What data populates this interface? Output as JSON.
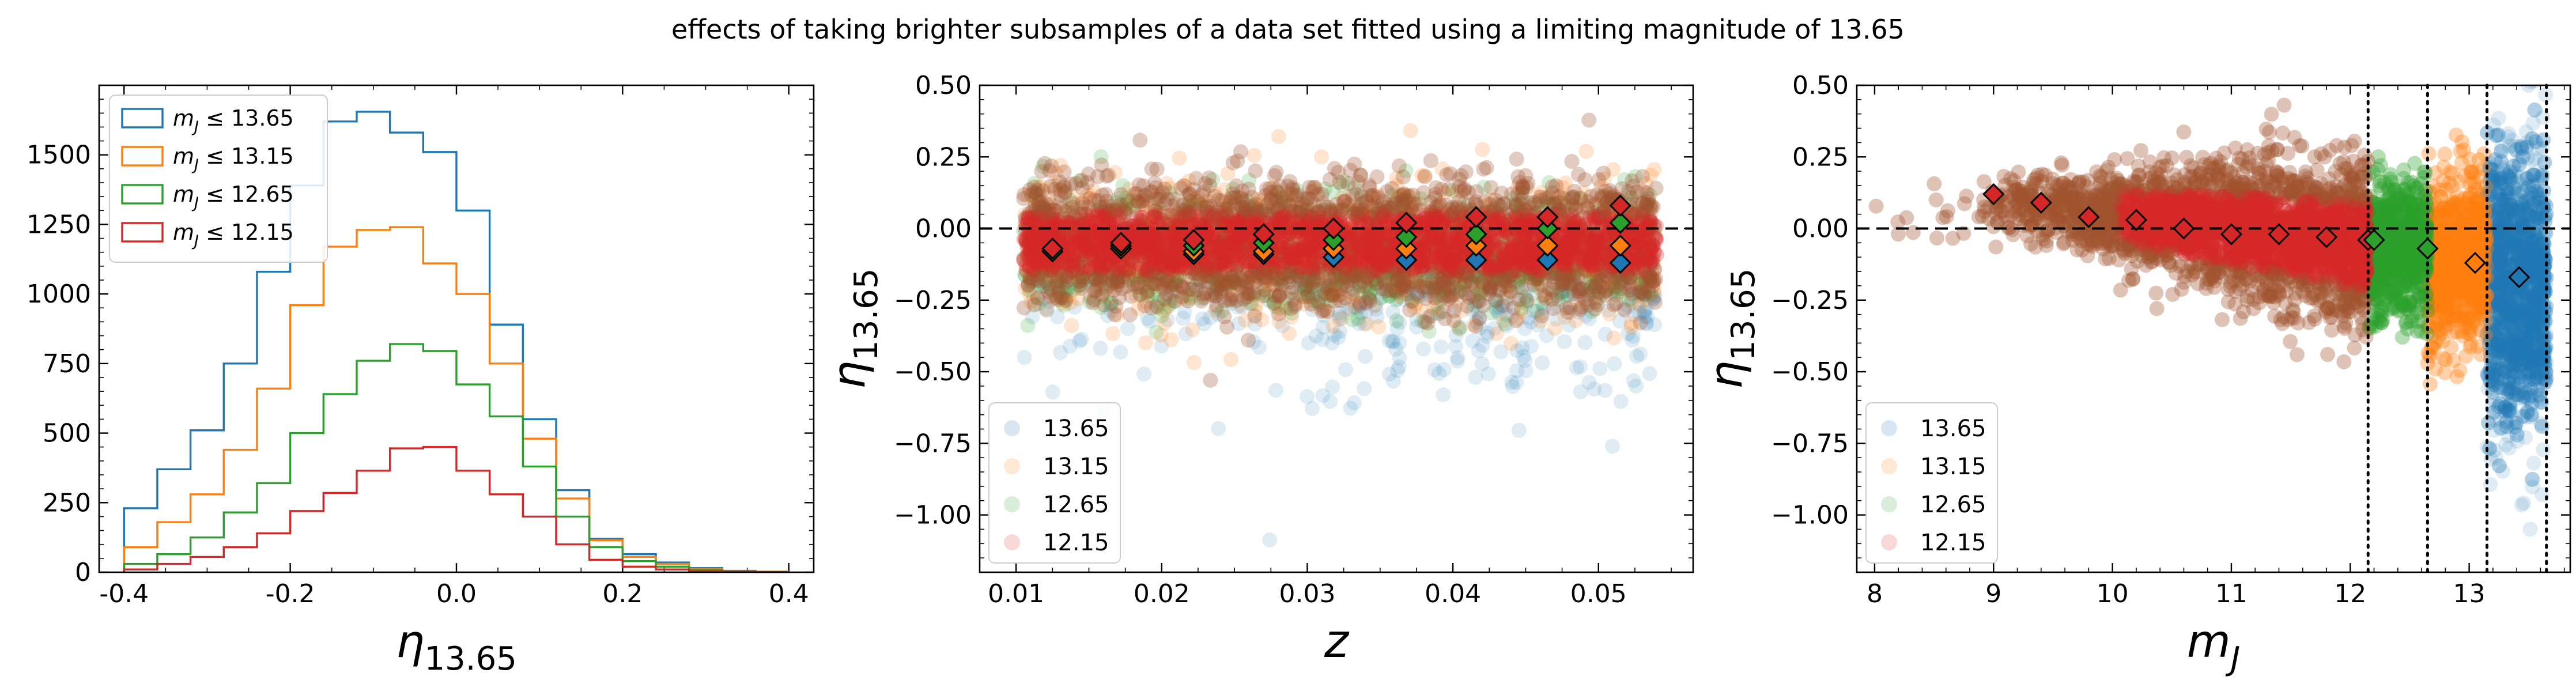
{
  "title": "effects of taking brighter subsamples of a data set fitted using a limiting magnitude of 13.65",
  "colors": {
    "s1365": "#1f77b4",
    "s1315": "#ff7f0e",
    "s1265": "#2ca02c",
    "s1215": "#d62728",
    "brown": "#a0522d"
  },
  "chart_data": [
    {
      "type": "histogram",
      "xlabel": "η13.65",
      "xlabel_main": "η",
      "xlabel_sub": "13.65",
      "ylabel": "",
      "xlim": [
        -0.43,
        0.43
      ],
      "ylim": [
        0,
        1750
      ],
      "xticks": [
        "-0.4",
        "-0.2",
        "0.0",
        "0.2",
        "0.4"
      ],
      "xtick_values": [
        -0.4,
        -0.2,
        0.0,
        0.2,
        0.4
      ],
      "yticks": [
        "0",
        "250",
        "500",
        "750",
        "1000",
        "1250",
        "1500"
      ],
      "ytick_values": [
        0,
        250,
        500,
        750,
        1000,
        1250,
        1500
      ],
      "legend_position": "top-left",
      "bin_edges": [
        -0.4,
        -0.36,
        -0.32,
        -0.28,
        -0.24,
        -0.2,
        -0.16,
        -0.12,
        -0.08,
        -0.04,
        0.0,
        0.04,
        0.08,
        0.12,
        0.16,
        0.2,
        0.24,
        0.28,
        0.32,
        0.36,
        0.4
      ],
      "series": [
        {
          "name": "m_J ≤ 13.65",
          "name_main": "m",
          "name_sub": "J",
          "name_rest": " ≤ 13.65",
          "color_key": "s1365",
          "values": [
            230,
            370,
            510,
            750,
            1080,
            1390,
            1620,
            1655,
            1580,
            1510,
            1300,
            890,
            550,
            295,
            120,
            65,
            35,
            15,
            5,
            2
          ]
        },
        {
          "name": "m_J ≤ 13.15",
          "name_main": "m",
          "name_sub": "J",
          "name_rest": " ≤ 13.15",
          "color_key": "s1315",
          "values": [
            90,
            180,
            280,
            440,
            660,
            960,
            1170,
            1230,
            1240,
            1110,
            1000,
            750,
            480,
            265,
            115,
            55,
            30,
            12,
            4,
            2
          ]
        },
        {
          "name": "m_J ≤ 12.65",
          "name_main": "m",
          "name_sub": "J",
          "name_rest": " ≤ 12.65",
          "color_key": "s1265",
          "values": [
            30,
            65,
            125,
            215,
            320,
            500,
            640,
            760,
            820,
            795,
            675,
            560,
            380,
            200,
            90,
            40,
            20,
            8,
            3,
            1
          ]
        },
        {
          "name": "m_J ≤ 12.15",
          "name_main": "m",
          "name_sub": "J",
          "name_rest": " ≤ 12.15",
          "color_key": "s1215",
          "values": [
            10,
            30,
            55,
            90,
            140,
            220,
            285,
            365,
            445,
            450,
            365,
            280,
            200,
            100,
            45,
            20,
            10,
            4,
            2,
            1
          ]
        }
      ]
    },
    {
      "type": "scatter",
      "xlabel": "z",
      "ylabel": "η13.65",
      "ylabel_main": "η",
      "ylabel_sub": "13.65",
      "xlim": [
        0.0075,
        0.0565
      ],
      "ylim": [
        -1.2,
        0.5
      ],
      "xticks": [
        "0.01",
        "0.02",
        "0.03",
        "0.04",
        "0.05"
      ],
      "xtick_values": [
        0.01,
        0.02,
        0.03,
        0.04,
        0.05
      ],
      "yticks": [
        "−1.00",
        "−0.75",
        "−0.50",
        "−0.25",
        "0.00",
        "0.25",
        "0.50"
      ],
      "ytick_values": [
        -1.0,
        -0.75,
        -0.5,
        -0.25,
        0.0,
        0.25,
        0.5
      ],
      "reference_line_y": 0.0,
      "legend_position": "bottom-left",
      "legend": [
        "13.65",
        "13.15",
        "12.65",
        "12.15"
      ],
      "point_clouds": [
        {
          "name": "13.65",
          "color_key": "s1365",
          "x_range": [
            0.0105,
            0.054
          ],
          "y_mean": -0.13,
          "y_sd": 0.17,
          "tail_x_from": 0.03
        },
        {
          "name": "13.15",
          "color_key": "s1315",
          "x_range": [
            0.0105,
            0.054
          ],
          "y_mean": -0.09,
          "y_sd": 0.11
        },
        {
          "name": "12.65",
          "color_key": "s1265",
          "x_range": [
            0.0105,
            0.054
          ],
          "y_mean": -0.06,
          "y_sd": 0.1
        },
        {
          "name": "12.15",
          "color_key": "s1215",
          "x_range": [
            0.0105,
            0.054
          ],
          "y_mean": -0.05,
          "y_sd": 0.09
        }
      ],
      "binned_means": [
        {
          "name": "13.65",
          "color_key": "s1365",
          "x": [
            0.0125,
            0.0172,
            0.0222,
            0.027,
            0.0318,
            0.0368,
            0.0416,
            0.0465,
            0.0515
          ],
          "y": [
            -0.08,
            -0.07,
            -0.09,
            -0.09,
            -0.1,
            -0.11,
            -0.11,
            -0.11,
            -0.12
          ]
        },
        {
          "name": "13.15",
          "color_key": "s1315",
          "x": [
            0.0125,
            0.0172,
            0.0222,
            0.027,
            0.0318,
            0.0368,
            0.0416,
            0.0465,
            0.0515
          ],
          "y": [
            -0.08,
            -0.07,
            -0.08,
            -0.08,
            -0.07,
            -0.07,
            -0.06,
            -0.06,
            -0.06
          ]
        },
        {
          "name": "12.65",
          "color_key": "s1265",
          "x": [
            0.0125,
            0.0172,
            0.0222,
            0.027,
            0.0318,
            0.0368,
            0.0416,
            0.0465,
            0.0515
          ],
          "y": [
            -0.08,
            -0.06,
            -0.06,
            -0.05,
            -0.04,
            -0.03,
            -0.02,
            0.0,
            0.02
          ]
        },
        {
          "name": "12.15",
          "color_key": "s1215",
          "x": [
            0.0125,
            0.0172,
            0.0222,
            0.027,
            0.0318,
            0.0368,
            0.0416,
            0.0465,
            0.0515
          ],
          "y": [
            -0.07,
            -0.05,
            -0.04,
            -0.02,
            0.0,
            0.02,
            0.04,
            0.04,
            0.08
          ]
        }
      ]
    },
    {
      "type": "scatter",
      "xlabel": "m_J",
      "xlabel_main": "m",
      "xlabel_sub": "J",
      "ylabel": "η13.65",
      "ylabel_main": "η",
      "ylabel_sub": "13.65",
      "xlim": [
        7.85,
        13.85
      ],
      "ylim": [
        -1.2,
        0.5
      ],
      "xticks": [
        "8",
        "9",
        "10",
        "11",
        "12",
        "13"
      ],
      "xtick_values": [
        8,
        9,
        10,
        11,
        12,
        13
      ],
      "yticks": [
        "−1.00",
        "−0.75",
        "−0.50",
        "−0.25",
        "0.00",
        "0.25",
        "0.50"
      ],
      "ytick_values": [
        -1.0,
        -0.75,
        -0.5,
        -0.25,
        0.0,
        0.25,
        0.5
      ],
      "reference_line_y": 0.0,
      "vertical_dotted_lines_x": [
        12.15,
        12.65,
        13.15,
        13.65
      ],
      "legend_position": "bottom-left",
      "legend": [
        "13.65",
        "13.15",
        "12.65",
        "12.15"
      ],
      "point_clouds": [
        {
          "name": "13.65",
          "color_key": "s1365",
          "x_range": [
            13.15,
            13.65
          ],
          "y_mean": -0.2,
          "y_sd": 0.22
        },
        {
          "name": "13.15",
          "color_key": "s1315",
          "x_range": [
            12.65,
            13.15
          ],
          "y_mean": -0.12,
          "y_sd": 0.14
        },
        {
          "name": "12.65",
          "color_key": "s1265",
          "x_range": [
            12.15,
            12.65
          ],
          "y_mean": -0.07,
          "y_sd": 0.12
        },
        {
          "name": "12.15",
          "color_key": "s1215",
          "x_range": [
            8.9,
            12.15
          ],
          "y_mean": -0.02,
          "y_sd": 0.1
        }
      ],
      "binned_means": [
        {
          "name": "12.15",
          "color_key": "s1215",
          "x": [
            9.0,
            9.4,
            9.8,
            10.2,
            10.6,
            11.0,
            11.4,
            11.8,
            12.15
          ],
          "y": [
            0.12,
            0.09,
            0.04,
            0.03,
            0.0,
            -0.02,
            -0.02,
            -0.03,
            -0.04
          ]
        },
        {
          "name": "12.65",
          "color_key": "s1265",
          "x": [
            12.2,
            12.65
          ],
          "y": [
            -0.04,
            -0.07
          ]
        },
        {
          "name": "13.15",
          "color_key": "s1315",
          "x": [
            13.05
          ],
          "y": [
            -0.12
          ]
        },
        {
          "name": "13.65",
          "color_key": "s1365",
          "x": [
            13.42
          ],
          "y": [
            -0.17
          ]
        }
      ]
    }
  ]
}
